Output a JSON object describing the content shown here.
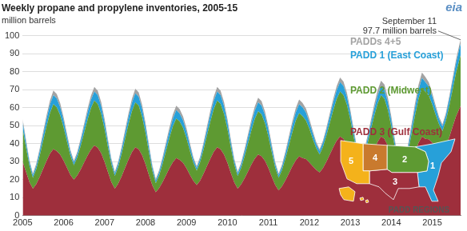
{
  "chart_data": {
    "type": "area",
    "title": "Weekly propane and propylene inventories, 2005-15",
    "subtitle": "million barrels",
    "logo": "eia",
    "stacked": true,
    "grid": true,
    "xlim": [
      2005,
      2015.693
    ],
    "xticks": [
      2005,
      2006,
      2007,
      2008,
      2009,
      2010,
      2011,
      2012,
      2013,
      2014,
      2015
    ],
    "ylim": [
      0,
      100
    ],
    "yticks": [
      0,
      10,
      20,
      30,
      40,
      50,
      60,
      70,
      80,
      90,
      100
    ],
    "annotations": [
      {
        "x": 2015.693,
        "y": 97.7,
        "text": [
          "September 11",
          "97.7 million barrels"
        ]
      }
    ],
    "map": {
      "title": "PADD REGIONS",
      "regions": [
        "1",
        "2",
        "3",
        "4",
        "5"
      ]
    },
    "x": [
      2005,
      2005.083,
      2005.167,
      2005.25,
      2005.333,
      2005.417,
      2005.5,
      2005.583,
      2005.667,
      2005.75,
      2005.833,
      2005.917,
      2006,
      2006.083,
      2006.167,
      2006.25,
      2006.333,
      2006.417,
      2006.5,
      2006.583,
      2006.667,
      2006.75,
      2006.833,
      2006.917,
      2007,
      2007.083,
      2007.167,
      2007.25,
      2007.333,
      2007.417,
      2007.5,
      2007.583,
      2007.667,
      2007.75,
      2007.833,
      2007.917,
      2008,
      2008.083,
      2008.167,
      2008.25,
      2008.333,
      2008.417,
      2008.5,
      2008.583,
      2008.667,
      2008.75,
      2008.833,
      2008.917,
      2009,
      2009.083,
      2009.167,
      2009.25,
      2009.333,
      2009.417,
      2009.5,
      2009.583,
      2009.667,
      2009.75,
      2009.833,
      2009.917,
      2010,
      2010.083,
      2010.167,
      2010.25,
      2010.333,
      2010.417,
      2010.5,
      2010.583,
      2010.667,
      2010.75,
      2010.833,
      2010.917,
      2011,
      2011.083,
      2011.167,
      2011.25,
      2011.333,
      2011.417,
      2011.5,
      2011.583,
      2011.667,
      2011.75,
      2011.833,
      2011.917,
      2012,
      2012.083,
      2012.167,
      2012.25,
      2012.333,
      2012.417,
      2012.5,
      2012.583,
      2012.667,
      2012.75,
      2012.833,
      2012.917,
      2013,
      2013.083,
      2013.167,
      2013.25,
      2013.333,
      2013.417,
      2013.5,
      2013.583,
      2013.667,
      2013.75,
      2013.833,
      2013.917,
      2014,
      2014.083,
      2014.167,
      2014.25,
      2014.333,
      2014.417,
      2014.5,
      2014.583,
      2014.667,
      2014.75,
      2014.833,
      2014.917,
      2015,
      2015.083,
      2015.167,
      2015.25,
      2015.333,
      2015.417,
      2015.5,
      2015.583,
      2015.667,
      2015.693
    ],
    "series": [
      {
        "name": "PADD 3 (Gulf Coast)",
        "color": "#9e2f3c",
        "values": [
          30,
          24.2,
          18.6,
          15,
          17.6,
          21.6,
          26,
          30.4,
          34.4,
          37,
          35.9,
          33.9,
          30.5,
          26.5,
          22.6,
          20,
          22.3,
          25.7,
          29.5,
          33.3,
          36.7,
          39,
          37.8,
          34.7,
          29.9,
          24.1,
          18.6,
          15,
          17.8,
          21.9,
          26.5,
          31.1,
          35.2,
          38,
          36.9,
          33.5,
          28.5,
          22.5,
          16.8,
          13,
          15.3,
          18.7,
          22.5,
          26.3,
          29.7,
          32,
          31,
          29.3,
          26.3,
          22.7,
          19.3,
          17,
          19.5,
          23.3,
          27.5,
          31.7,
          35.5,
          38,
          36.9,
          33.9,
          29.3,
          23.7,
          18.5,
          15,
          17.3,
          20.7,
          24.5,
          28.3,
          31.7,
          34,
          33,
          30.4,
          26.4,
          21.6,
          17,
          14,
          16.3,
          19.7,
          23.5,
          27.3,
          30.7,
          33,
          32,
          31.4,
          29.6,
          27.4,
          25.4,
          24,
          26.4,
          30,
          34,
          38,
          41.6,
          44,
          42.7,
          39.5,
          34.5,
          28.5,
          22.8,
          19,
          22,
          26.5,
          31.5,
          36.5,
          41,
          44,
          42.7,
          38.8,
          33,
          26,
          19.4,
          15,
          18.5,
          23.7,
          29.5,
          35.3,
          40.5,
          44,
          42.7,
          42.4,
          40.6,
          38.4,
          36.4,
          35,
          38.5,
          43.7,
          49.5,
          55.3,
          59.6,
          61
        ]
      },
      {
        "name": "PADD 2 (Midwest)",
        "color": "#5e9a32",
        "values": [
          18,
          13.4,
          8.9,
          6,
          8.3,
          11.7,
          15.5,
          19.3,
          22.7,
          25,
          24.3,
          21.9,
          18.5,
          14.5,
          10.6,
          8,
          10,
          13.1,
          16.5,
          19.9,
          23,
          25,
          24.3,
          21.8,
          18.2,
          13.8,
          9.7,
          7,
          9.2,
          12.4,
          16,
          19.6,
          22.8,
          25,
          24.3,
          21.4,
          17.4,
          12.6,
          8,
          5,
          7,
          10.1,
          13.5,
          16.9,
          20,
          22,
          21.3,
          19.5,
          16.7,
          13.3,
          10.1,
          8,
          10.2,
          13.4,
          17,
          20.6,
          23.8,
          26,
          25.2,
          22.6,
          18.8,
          14.2,
          9.9,
          7,
          9,
          12.1,
          15.5,
          18.9,
          22,
          24,
          23.3,
          20.9,
          17.5,
          13.5,
          9.6,
          7,
          9,
          12.1,
          15.5,
          18.9,
          22,
          24,
          23.3,
          21.5,
          18.7,
          15.3,
          12.1,
          10,
          11.8,
          14.5,
          17.5,
          20.5,
          23.2,
          25,
          24.3,
          22.1,
          18.9,
          15.1,
          11.4,
          9,
          10.7,
          13.2,
          16,
          18.8,
          21.3,
          23,
          22.3,
          19.9,
          16.5,
          12.5,
          8.6,
          6,
          8.5,
          12.3,
          16.5,
          20.7,
          24.5,
          27,
          26.2,
          24.3,
          21.3,
          17.7,
          14.3,
          12,
          14.1,
          17.3,
          20.8,
          24.3,
          27.4,
          28
        ]
      },
      {
        "name": "PADD 1 (East Coast)",
        "color": "#27a0d9",
        "values": [
          3.7,
          2.8,
          2,
          1.5,
          1.9,
          2.6,
          3.3,
          4,
          4.6,
          5,
          4.9,
          4.4,
          3.7,
          2.8,
          2,
          1.5,
          1.9,
          2.6,
          3.3,
          4,
          4.6,
          5,
          4.9,
          4.4,
          3.7,
          2.8,
          2,
          1.5,
          1.9,
          2.6,
          3.3,
          4,
          4.6,
          5,
          4.9,
          4.4,
          3.7,
          2.8,
          2,
          1.5,
          1.8,
          2.4,
          3.1,
          3.7,
          4.2,
          4.6,
          4.5,
          4.1,
          3.7,
          2.8,
          2,
          1.5,
          1.9,
          2.6,
          3.3,
          4,
          4.6,
          5,
          4.9,
          4.4,
          3.7,
          2.8,
          2,
          1.5,
          1.9,
          2.6,
          3.3,
          4,
          4.6,
          5,
          4.9,
          4.4,
          3.7,
          2.8,
          2,
          1.5,
          1.9,
          2.6,
          3.3,
          4,
          4.6,
          5,
          4.9,
          4.4,
          3.5,
          2.9,
          2.3,
          2,
          2.4,
          3,
          3.7,
          4.3,
          4.9,
          5.2,
          5.1,
          4.5,
          3.7,
          2.8,
          2,
          1.5,
          1.9,
          2.6,
          3.3,
          4,
          4.6,
          5,
          4.9,
          4.4,
          3.7,
          2.8,
          2,
          1.5,
          2,
          2.7,
          3.5,
          4.3,
          5,
          5.5,
          5.3,
          5,
          4.4,
          3.6,
          2.9,
          2.5,
          3,
          3.8,
          4.6,
          5.4,
          6.2,
          6.5
        ]
      },
      {
        "name": "PADDs 4+5",
        "color": "#a3a3a3",
        "values": [
          1.9,
          1.6,
          1.2,
          1,
          1.2,
          1.5,
          1.8,
          2.1,
          2.3,
          2.5,
          2.4,
          2.2,
          1.9,
          1.6,
          1.2,
          1,
          1.2,
          1.5,
          1.8,
          2.1,
          2.3,
          2.5,
          2.4,
          2.2,
          1.9,
          1.6,
          1.2,
          1,
          1.2,
          1.5,
          1.8,
          2.1,
          2.3,
          2.5,
          2.4,
          2.2,
          1.9,
          1.6,
          1.2,
          1,
          1.2,
          1.5,
          1.8,
          2.1,
          2.3,
          2.5,
          2.4,
          2.2,
          1.9,
          1.6,
          1.2,
          1,
          1.2,
          1.5,
          1.8,
          2.1,
          2.3,
          2.5,
          2.4,
          2.2,
          1.9,
          1.6,
          1.2,
          1,
          1.2,
          1.5,
          1.8,
          2.1,
          2.3,
          2.5,
          2.4,
          2.2,
          1.9,
          1.6,
          1.2,
          1,
          1.2,
          1.5,
          1.8,
          2.1,
          2.3,
          2.5,
          2.4,
          2.2,
          1.9,
          1.6,
          1.2,
          1,
          1.2,
          1.5,
          1.8,
          2.1,
          2.3,
          2.5,
          2.4,
          2.2,
          1.9,
          1.6,
          1.2,
          1,
          1.3,
          1.7,
          2.1,
          2.5,
          2.8,
          3,
          2.9,
          2.5,
          2.1,
          1.7,
          1.3,
          1,
          1.3,
          1.7,
          2.1,
          2.5,
          2.8,
          3,
          2.9,
          2.4,
          1.9,
          1.6,
          1.3,
          1.2,
          1.4,
          1.6,
          1.8,
          2,
          2.2,
          2.2
        ]
      }
    ]
  }
}
